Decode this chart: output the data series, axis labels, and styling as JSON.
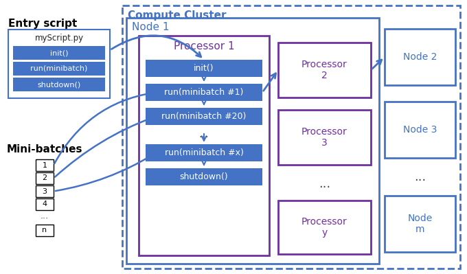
{
  "bg_color": "#ffffff",
  "blue_box_color": "#4472C4",
  "blue_box_text_color": "#ffffff",
  "node_border_color": "#4472C4",
  "processor_border_color": "#7030A0",
  "compute_cluster_dash_color": "#4472C4",
  "arrow_color": "#4472C4",
  "label_color_blue": "#4472C4",
  "label_color_purple": "#7030A0",
  "title": "Compute Cluster",
  "node1_label": "Node 1",
  "proc1_label": "Processor 1",
  "proc2_label": "Processor\n2",
  "proc3_label": "Processor\n3",
  "procy_label": "Processor\ny",
  "node2_label": "Node 2",
  "node3_label": "Node 3",
  "nodem_label": "Node\nm",
  "entry_script_label": "Entry script",
  "minibatches_label": "Mini-batches",
  "script_file": "myScript.py",
  "proc1_steps": [
    "init()",
    "run(minibatch #1)",
    "run(minibatch #20)",
    "...",
    "run(minibatch #x)",
    "shutdown()"
  ],
  "minibatch_numbers": [
    "1",
    "2",
    "3",
    "4"
  ],
  "entry_script_methods": [
    "init()",
    "run(minibatch)",
    "shutdown()"
  ]
}
